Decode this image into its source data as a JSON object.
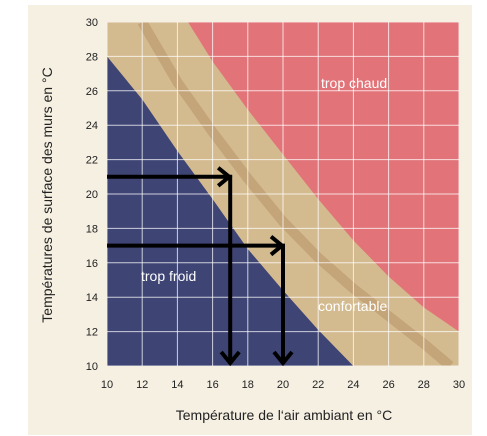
{
  "chart_data": {
    "type": "area",
    "title": "",
    "xlabel": "Température de l‘air ambiant en °C",
    "ylabel": "Températures de surface des murs en °C",
    "xlim": [
      10,
      30
    ],
    "ylim": [
      10,
      30
    ],
    "x_ticks": [
      10,
      12,
      14,
      16,
      18,
      20,
      22,
      24,
      26,
      28,
      30
    ],
    "y_ticks": [
      10,
      12,
      14,
      16,
      18,
      20,
      22,
      24,
      26,
      28,
      30
    ],
    "grid": true,
    "regions": [
      {
        "name": "trop froid",
        "color": "#3e4474",
        "boundary": [
          [
            10,
            28
          ],
          [
            12,
            25.5
          ],
          [
            14,
            22.5
          ],
          [
            16,
            19.7
          ],
          [
            18,
            16.8
          ],
          [
            20,
            14.4
          ],
          [
            22,
            12.1
          ],
          [
            24,
            10
          ]
        ]
      },
      {
        "name": "confortable",
        "color": "#d4bb8f",
        "centerline": [
          [
            12,
            30
          ],
          [
            14,
            26.5
          ],
          [
            16,
            23.6
          ],
          [
            18,
            20.9
          ],
          [
            20,
            18.4
          ],
          [
            22,
            16.3
          ],
          [
            24,
            14.5
          ],
          [
            26,
            12.9
          ],
          [
            28,
            11.3
          ],
          [
            29.5,
            10
          ]
        ]
      },
      {
        "name": "trop chaud",
        "color": "#e27479",
        "boundary": [
          [
            14.6,
            30
          ],
          [
            16,
            27.7
          ],
          [
            18,
            24.9
          ],
          [
            20,
            22.3
          ],
          [
            22,
            19.7
          ],
          [
            24,
            17.3
          ],
          [
            26,
            15.2
          ],
          [
            28,
            13.4
          ],
          [
            30,
            12
          ]
        ]
      }
    ],
    "labels": {
      "trop_chaud": "trop chaud",
      "trop_froid": "trop froid",
      "confortable": "confortable"
    },
    "arrows": [
      {
        "y": 21,
        "x_end": 17
      },
      {
        "y": 17,
        "x_end": 20
      }
    ]
  }
}
